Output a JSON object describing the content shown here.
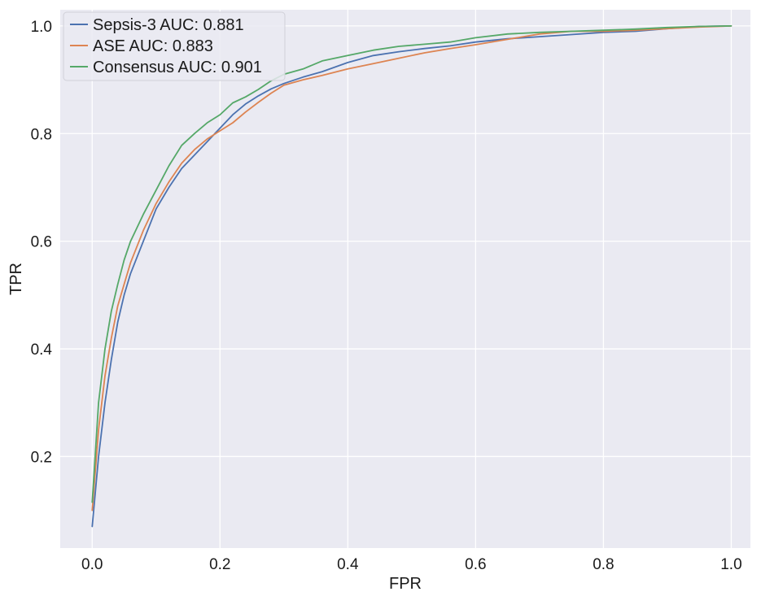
{
  "chart_data": {
    "type": "line",
    "title": "",
    "xlabel": "FPR",
    "ylabel": "TPR",
    "xlim": [
      -0.05,
      1.03
    ],
    "ylim": [
      0.03,
      1.03
    ],
    "xticks": [
      0.0,
      0.2,
      0.4,
      0.6,
      0.8,
      1.0
    ],
    "xtick_labels": [
      "0.0",
      "0.2",
      "0.4",
      "0.6",
      "0.8",
      "1.0"
    ],
    "yticks": [
      0.2,
      0.4,
      0.6,
      0.8,
      1.0
    ],
    "ytick_labels": [
      "0.2",
      "0.4",
      "0.6",
      "0.8",
      "1.0"
    ],
    "grid": true,
    "legend_position": "top-left",
    "background": "#eaeaf2",
    "series": [
      {
        "name": "Sepsis-3 AUC: 0.881",
        "color": "#4c72b0",
        "x": [
          0.0,
          0.01,
          0.02,
          0.03,
          0.04,
          0.05,
          0.06,
          0.08,
          0.1,
          0.12,
          0.14,
          0.16,
          0.18,
          0.2,
          0.22,
          0.24,
          0.26,
          0.28,
          0.3,
          0.33,
          0.36,
          0.4,
          0.44,
          0.48,
          0.52,
          0.56,
          0.6,
          0.65,
          0.7,
          0.75,
          0.8,
          0.85,
          0.9,
          0.95,
          1.0
        ],
        "y": [
          0.07,
          0.2,
          0.3,
          0.38,
          0.45,
          0.5,
          0.54,
          0.6,
          0.66,
          0.7,
          0.735,
          0.76,
          0.785,
          0.81,
          0.835,
          0.855,
          0.87,
          0.883,
          0.893,
          0.905,
          0.915,
          0.932,
          0.945,
          0.952,
          0.958,
          0.963,
          0.97,
          0.976,
          0.98,
          0.984,
          0.988,
          0.99,
          0.995,
          0.999,
          1.0
        ]
      },
      {
        "name": "ASE AUC: 0.883",
        "color": "#dd8452",
        "x": [
          0.0,
          0.01,
          0.02,
          0.03,
          0.04,
          0.05,
          0.06,
          0.08,
          0.1,
          0.12,
          0.14,
          0.16,
          0.18,
          0.2,
          0.22,
          0.24,
          0.26,
          0.28,
          0.3,
          0.33,
          0.36,
          0.4,
          0.44,
          0.48,
          0.52,
          0.56,
          0.6,
          0.65,
          0.7,
          0.75,
          0.8,
          0.85,
          0.9,
          0.95,
          1.0
        ],
        "y": [
          0.1,
          0.25,
          0.35,
          0.42,
          0.48,
          0.52,
          0.56,
          0.62,
          0.67,
          0.71,
          0.745,
          0.77,
          0.79,
          0.805,
          0.82,
          0.84,
          0.858,
          0.875,
          0.89,
          0.9,
          0.908,
          0.92,
          0.93,
          0.94,
          0.95,
          0.958,
          0.965,
          0.975,
          0.985,
          0.99,
          0.99,
          0.992,
          0.995,
          0.998,
          1.0
        ]
      },
      {
        "name": "Consensus AUC: 0.901",
        "color": "#55a868",
        "x": [
          0.0,
          0.01,
          0.02,
          0.03,
          0.04,
          0.05,
          0.06,
          0.08,
          0.1,
          0.12,
          0.14,
          0.16,
          0.18,
          0.2,
          0.22,
          0.24,
          0.26,
          0.28,
          0.3,
          0.33,
          0.36,
          0.4,
          0.44,
          0.48,
          0.52,
          0.56,
          0.6,
          0.65,
          0.7,
          0.75,
          0.8,
          0.85,
          0.9,
          0.95,
          1.0
        ],
        "y": [
          0.115,
          0.3,
          0.4,
          0.47,
          0.52,
          0.565,
          0.6,
          0.65,
          0.695,
          0.74,
          0.778,
          0.8,
          0.82,
          0.835,
          0.857,
          0.868,
          0.882,
          0.898,
          0.91,
          0.92,
          0.935,
          0.945,
          0.955,
          0.962,
          0.966,
          0.97,
          0.978,
          0.985,
          0.988,
          0.99,
          0.992,
          0.994,
          0.997,
          0.999,
          1.0
        ]
      }
    ]
  }
}
